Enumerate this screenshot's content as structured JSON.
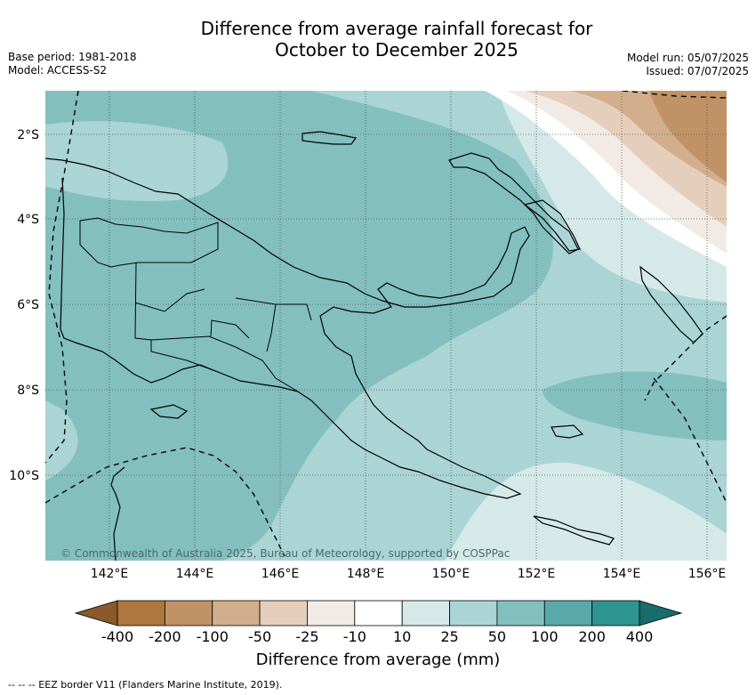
{
  "header": {
    "title_line1": "Difference from average rainfall forecast for",
    "title_line2": "October to December 2025",
    "base_period": "Base period: 1981-2018",
    "model": "Model: ACCESS-S2",
    "model_run": "Model run: 05/07/2025",
    "issued": "Issued: 07/07/2025"
  },
  "map": {
    "lat_labels": [
      "2°S",
      "4°S",
      "6°S",
      "8°S",
      "10°S"
    ],
    "lon_labels": [
      "142°E",
      "144°E",
      "146°E",
      "148°E",
      "150°E",
      "152°E",
      "154°E",
      "156°E"
    ],
    "copyright": "© Commonwealth of Australia 2025, Bureau of Meteorology, supported by COSPPac"
  },
  "colorbar": {
    "label": "Difference from average (mm)",
    "ticks": [
      "-400",
      "-200",
      "-100",
      "-50",
      "-25",
      "-10",
      "10",
      "25",
      "50",
      "100",
      "200",
      "400"
    ],
    "colors": [
      "#8b5a2b",
      "#ae773d",
      "#c19265",
      "#d2ae8d",
      "#e5cfbc",
      "#f2ebe5",
      "#ffffff",
      "#d5e9e8",
      "#abd4d4",
      "#83bfbf",
      "#5baaaa",
      "#2e9490",
      "#1a6b6b"
    ]
  },
  "footer": {
    "legend_text": "-- -- -- EEZ border V11 (Flanders Marine Institute, 2019)."
  }
}
